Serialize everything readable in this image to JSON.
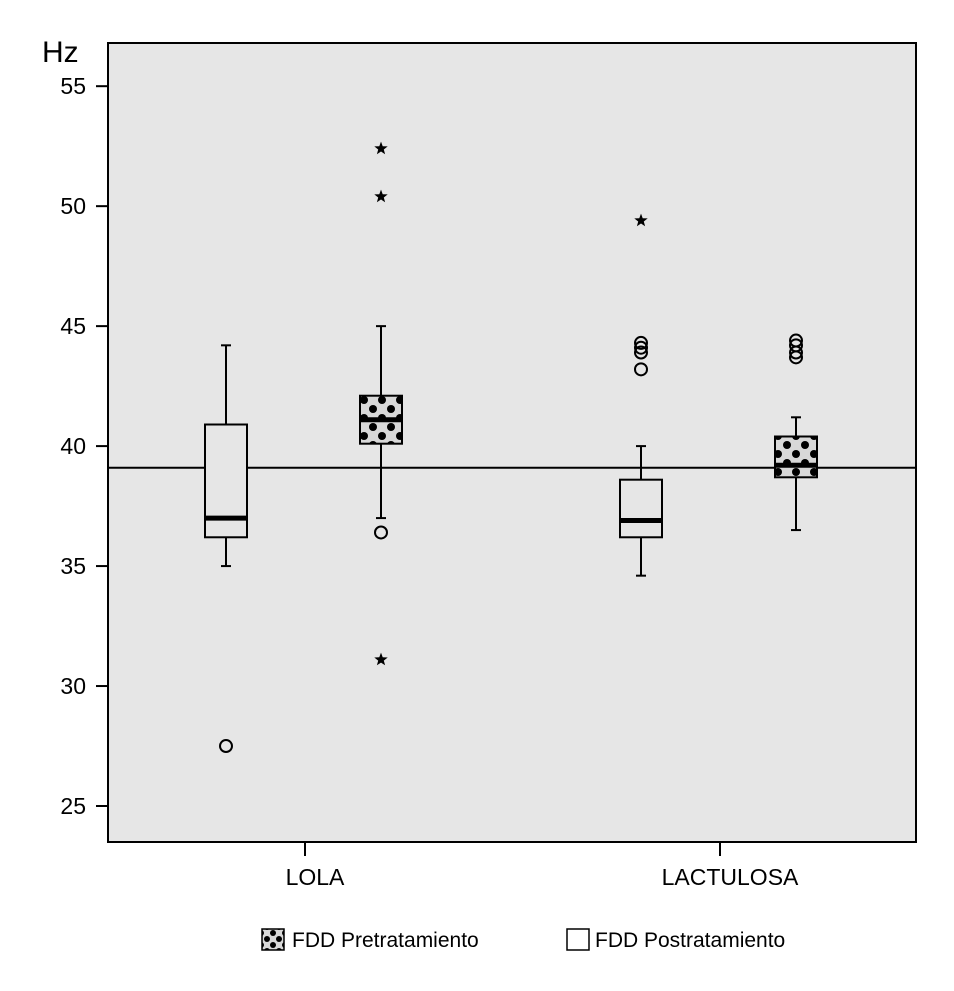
{
  "chart_data": {
    "type": "boxplot",
    "ylabel": "Hz",
    "ylim": [
      23.5,
      56.8
    ],
    "yticks": [
      25,
      30,
      35,
      40,
      45,
      50,
      55
    ],
    "categories": [
      "LOLA",
      "LACTULOSA"
    ],
    "reference_line": 39.1,
    "grid": false,
    "legend_position": "bottom",
    "series": [
      {
        "name": "FDD Postratamiento",
        "style": "plain",
        "boxes": [
          {
            "category": "LOLA",
            "whisker_low": 35.0,
            "q1": 36.2,
            "median": 37.0,
            "q3": 40.9,
            "whisker_high": 44.2,
            "outliers": [
              {
                "value": 27.5,
                "marker": "circle"
              }
            ]
          },
          {
            "category": "LACTULOSA",
            "whisker_low": 34.6,
            "q1": 36.2,
            "median": 36.9,
            "q3": 38.6,
            "whisker_high": 40.0,
            "outliers": [
              {
                "value": 43.2,
                "marker": "circle"
              },
              {
                "value": 43.9,
                "marker": "circle"
              },
              {
                "value": 44.1,
                "marker": "circle"
              },
              {
                "value": 44.3,
                "marker": "circle"
              },
              {
                "value": 49.4,
                "marker": "star"
              }
            ]
          }
        ]
      },
      {
        "name": "FDD Pretratamiento",
        "style": "dotted",
        "boxes": [
          {
            "category": "LOLA",
            "whisker_low": 37.0,
            "q1": 40.1,
            "median": 41.1,
            "q3": 42.1,
            "whisker_high": 45.0,
            "outliers": [
              {
                "value": 36.4,
                "marker": "circle"
              },
              {
                "value": 31.1,
                "marker": "star"
              },
              {
                "value": 50.4,
                "marker": "star"
              },
              {
                "value": 52.4,
                "marker": "star"
              }
            ]
          },
          {
            "category": "LACTULOSA",
            "whisker_low": 36.5,
            "q1": 38.7,
            "median": 39.2,
            "q3": 40.4,
            "whisker_high": 41.2,
            "outliers": [
              {
                "value": 43.7,
                "marker": "circle"
              },
              {
                "value": 43.9,
                "marker": "circle"
              },
              {
                "value": 44.2,
                "marker": "circle"
              },
              {
                "value": 44.4,
                "marker": "circle"
              }
            ]
          }
        ]
      }
    ],
    "legend": [
      {
        "label": "FDD Pretratamiento",
        "style": "dotted"
      },
      {
        "label": "FDD Postratamiento",
        "style": "plain"
      }
    ]
  }
}
